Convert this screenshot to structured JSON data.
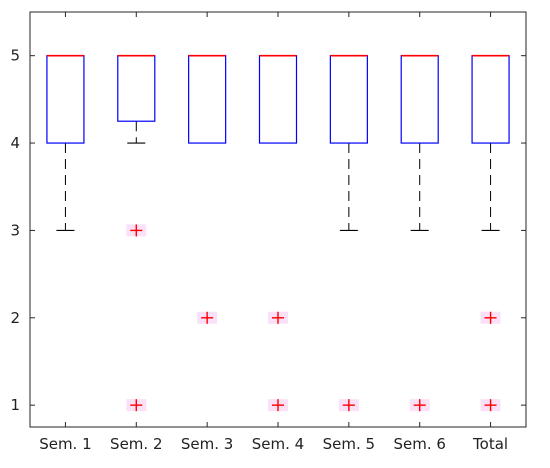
{
  "chart_data": {
    "type": "box",
    "title": "",
    "xlabel": "",
    "ylabel": "",
    "ylim": [
      0.75,
      5.5
    ],
    "yticks": [
      1,
      2,
      3,
      4,
      5
    ],
    "grid": false,
    "categories": [
      "Sem. 1",
      "Sem. 2",
      "Sem. 3",
      "Sem. 4",
      "Sem. 5",
      "Sem. 6",
      "Total"
    ],
    "boxes": [
      {
        "category": "Sem. 1",
        "q1": 4,
        "median": 5,
        "q3": 5,
        "whisker_low": 3,
        "whisker_high": 5,
        "outliers": []
      },
      {
        "category": "Sem. 2",
        "q1": 4.25,
        "median": 5,
        "q3": 5,
        "whisker_low": 4,
        "whisker_high": 5,
        "outliers": [
          3,
          1
        ]
      },
      {
        "category": "Sem. 3",
        "q1": 4,
        "median": 5,
        "q3": 5,
        "whisker_low": 4,
        "whisker_high": 5,
        "outliers": [
          2
        ]
      },
      {
        "category": "Sem. 4",
        "q1": 4,
        "median": 5,
        "q3": 5,
        "whisker_low": 4,
        "whisker_high": 5,
        "outliers": [
          2,
          1
        ]
      },
      {
        "category": "Sem. 5",
        "q1": 4,
        "median": 5,
        "q3": 5,
        "whisker_low": 3,
        "whisker_high": 5,
        "outliers": [
          1
        ]
      },
      {
        "category": "Sem. 6",
        "q1": 4,
        "median": 5,
        "q3": 5,
        "whisker_low": 3,
        "whisker_high": 5,
        "outliers": [
          1
        ]
      },
      {
        "category": "Total",
        "q1": 4,
        "median": 5,
        "q3": 5,
        "whisker_low": 3,
        "whisker_high": 5,
        "outliers": [
          2,
          1
        ]
      }
    ],
    "colors": {
      "box": "#0000ff",
      "median": "#ff0000",
      "whisker": "#000000",
      "outlier": "#ff0000",
      "outlier_halo": "#f5c8f0",
      "axis": "#262626"
    }
  }
}
